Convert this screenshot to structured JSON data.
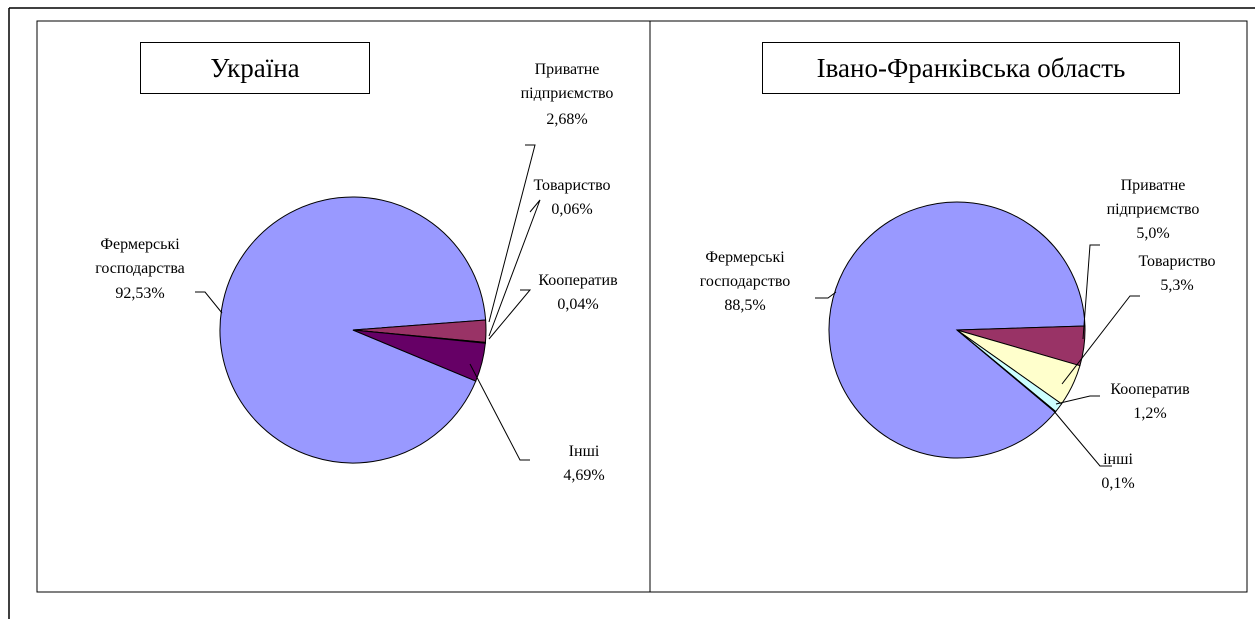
{
  "chart_data": [
    {
      "type": "pie",
      "title": "Україна",
      "categories": [
        "Фермерські господарства",
        "Приватне підприємство",
        "Товариство",
        "Кооператив",
        "Інші"
      ],
      "values": [
        92.53,
        2.68,
        0.06,
        0.04,
        4.69
      ],
      "value_labels": [
        "92,53%",
        "2,68%",
        "0,06%",
        "0,04%",
        "4,69%"
      ],
      "colors": [
        "#9999ff",
        "#993366",
        "#ffffcc",
        "#ccffff",
        "#660066"
      ]
    },
    {
      "type": "pie",
      "title": "Івано-Франківська область",
      "categories": [
        "Фермерські господарство",
        "Приватне підприємство",
        "Товариство",
        "Кооператив",
        "інші"
      ],
      "values": [
        88.5,
        5.0,
        5.3,
        1.2,
        0.1
      ],
      "value_labels": [
        "88,5%",
        "5,0%",
        "5,3%",
        "1,2%",
        "0,1%"
      ],
      "colors": [
        "#9999ff",
        "#993366",
        "#ffffcc",
        "#ccffff",
        "#660066"
      ]
    }
  ]
}
